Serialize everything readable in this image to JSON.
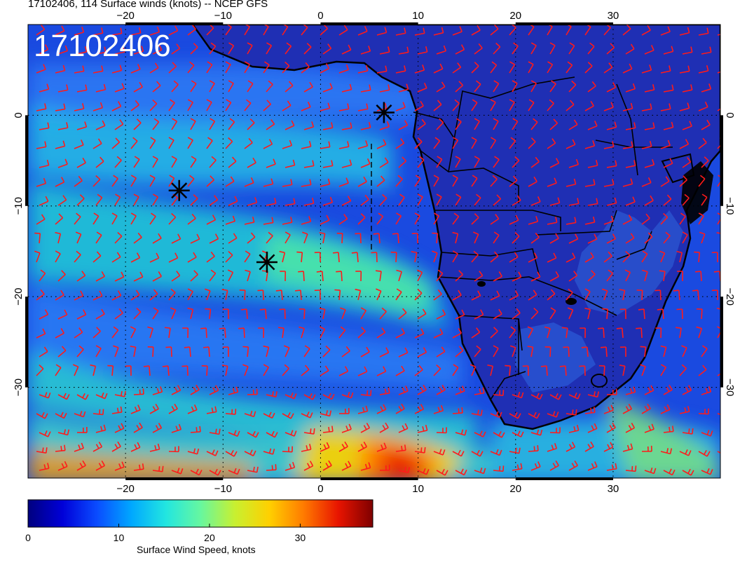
{
  "title": "17102406, 114 Surface winds (knots) -- NCEP GFS",
  "stamp": "17102406",
  "lon_ticks": [
    {
      "label": "−20",
      "value": -20
    },
    {
      "label": "−10",
      "value": -10
    },
    {
      "label": "0",
      "value": 0
    },
    {
      "label": "10",
      "value": 10
    },
    {
      "label": "20",
      "value": 20
    },
    {
      "label": "30",
      "value": 30
    }
  ],
  "lat_ticks": [
    {
      "label": "0",
      "value": 0
    },
    {
      "label": "−10",
      "value": -10
    },
    {
      "label": "−20",
      "value": -20
    },
    {
      "label": "−30",
      "value": -30
    }
  ],
  "map_extent": {
    "lon": [
      -30,
      41
    ],
    "lat": [
      -40,
      10
    ]
  },
  "colorbar": {
    "label": "Surface Wind Speed, knots",
    "ticks": [
      "0",
      "10",
      "20",
      "30"
    ],
    "tick_values": [
      0,
      10,
      20,
      30
    ],
    "range": [
      0,
      38
    ],
    "colors": [
      "#00007f",
      "#0000d8",
      "#0a4cff",
      "#00a8ff",
      "#22e6e0",
      "#66f7a0",
      "#c8f030",
      "#ffd000",
      "#ff7a00",
      "#e81400",
      "#7f0000"
    ]
  },
  "markers": [
    {
      "lon": 6.5,
      "lat": 0.3
    },
    {
      "lon": -14.5,
      "lat": -8.3
    },
    {
      "lon": -5.5,
      "lat": -16.2
    }
  ],
  "colors": {
    "ocean": "#1a4ae0",
    "land": "#1f2fb4",
    "barb": "#ff1a1a",
    "coast": "#000000"
  }
}
